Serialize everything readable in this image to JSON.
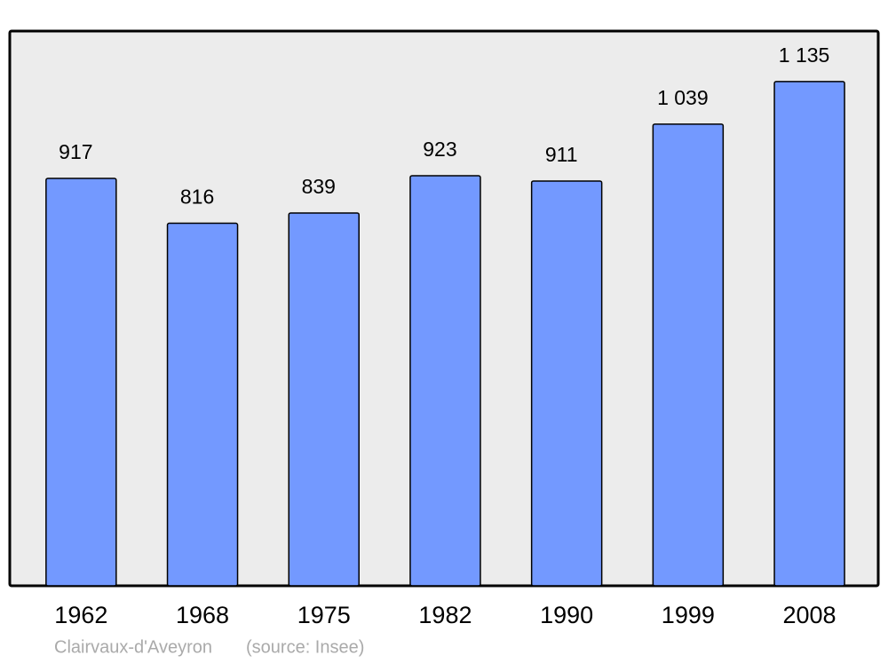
{
  "chart_data": {
    "type": "bar",
    "title": "Clairvaux-d'Aveyron",
    "source": "(source: Insee)",
    "categories": [
      "1962",
      "1968",
      "1975",
      "1982",
      "1990",
      "1999",
      "2008"
    ],
    "values": [
      917,
      816,
      839,
      923,
      911,
      1039,
      1135
    ],
    "value_labels": [
      "917",
      "816",
      "839",
      "923",
      "911",
      "1 039",
      "1 135"
    ],
    "color": "#7399ff",
    "ylim": [
      0,
      1248.5
    ]
  }
}
